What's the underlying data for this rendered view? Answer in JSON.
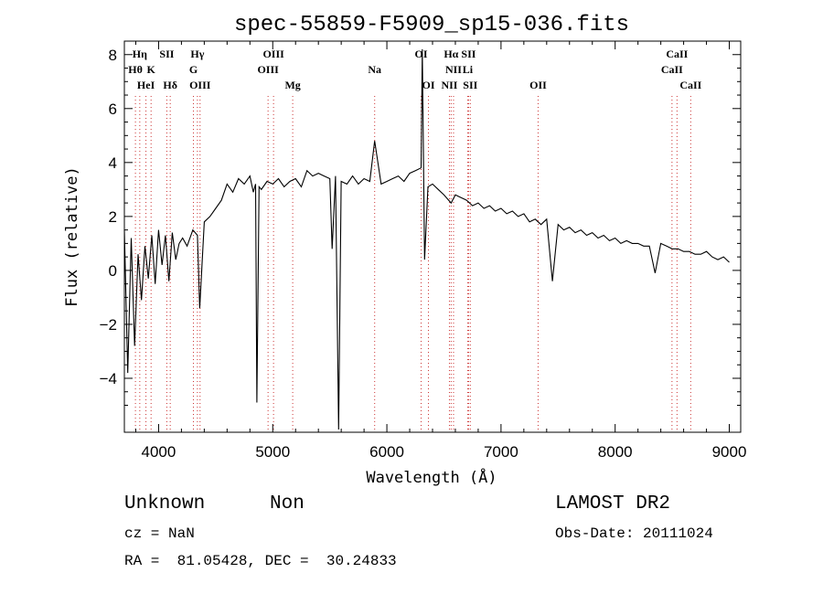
{
  "chart_data": {
    "type": "line",
    "title": "spec-55859-F5909_sp15-036.fits",
    "xlabel": "Wavelength (Å)",
    "ylabel": "Flux (relative)",
    "xlim": [
      3700,
      9100
    ],
    "ylim": [
      -6,
      8.5
    ],
    "xticks": [
      4000,
      5000,
      6000,
      7000,
      8000,
      9000
    ],
    "yticks": [
      -4,
      -2,
      0,
      2,
      4,
      6,
      8
    ],
    "grid": false,
    "series": [
      {
        "color": "#000000",
        "x": [
          3700,
          3730,
          3760,
          3790,
          3820,
          3850,
          3880,
          3910,
          3940,
          3970,
          4000,
          4030,
          4060,
          4090,
          4120,
          4150,
          4180,
          4210,
          4250,
          4300,
          4340,
          4360,
          4400,
          4450,
          4500,
          4550,
          4600,
          4650,
          4700,
          4750,
          4800,
          4830,
          4850,
          4861,
          4880,
          4900,
          4950,
          5000,
          5050,
          5100,
          5150,
          5200,
          5250,
          5300,
          5350,
          5400,
          5450,
          5500,
          5520,
          5550,
          5577,
          5600,
          5650,
          5700,
          5750,
          5800,
          5850,
          5893,
          5950,
          6000,
          6050,
          6100,
          6150,
          6200,
          6250,
          6300,
          6310,
          6330,
          6360,
          6400,
          6450,
          6500,
          6563,
          6600,
          6650,
          6700,
          6750,
          6800,
          6850,
          6900,
          6950,
          7000,
          7050,
          7100,
          7150,
          7200,
          7250,
          7300,
          7350,
          7400,
          7450,
          7500,
          7550,
          7600,
          7650,
          7700,
          7750,
          7800,
          7850,
          7900,
          7950,
          8000,
          8050,
          8100,
          8150,
          8200,
          8250,
          8300,
          8350,
          8400,
          8450,
          8500,
          8550,
          8600,
          8650,
          8700,
          8750,
          8800,
          8850,
          8900,
          8950,
          9000
        ],
        "y": [
          1.5,
          -3.8,
          1.2,
          -2.8,
          0.6,
          -1.1,
          0.9,
          -0.3,
          1.3,
          -0.5,
          1.5,
          0.2,
          1.3,
          -0.4,
          1.4,
          0.4,
          1.0,
          1.2,
          0.9,
          1.5,
          1.3,
          -1.4,
          1.8,
          2.0,
          2.3,
          2.6,
          3.2,
          2.9,
          3.4,
          3.2,
          3.5,
          2.9,
          3.2,
          -4.9,
          3.1,
          3.0,
          3.3,
          3.2,
          3.4,
          3.1,
          3.3,
          3.4,
          3.1,
          3.7,
          3.5,
          3.6,
          3.5,
          3.4,
          0.8,
          3.5,
          -5.9,
          3.3,
          3.2,
          3.5,
          3.2,
          3.4,
          3.3,
          4.8,
          3.2,
          3.3,
          3.4,
          3.5,
          3.3,
          3.6,
          3.7,
          3.8,
          8.2,
          0.4,
          3.1,
          3.2,
          3.0,
          2.8,
          2.5,
          2.8,
          2.7,
          2.6,
          2.4,
          2.5,
          2.3,
          2.4,
          2.2,
          2.3,
          2.1,
          2.2,
          2.0,
          2.1,
          1.8,
          1.9,
          1.7,
          1.9,
          -0.4,
          1.7,
          1.5,
          1.6,
          1.4,
          1.5,
          1.3,
          1.4,
          1.2,
          1.3,
          1.1,
          1.2,
          1.0,
          1.1,
          1.0,
          1.0,
          0.9,
          0.9,
          -0.1,
          1.0,
          0.9,
          0.8,
          0.8,
          0.7,
          0.7,
          0.6,
          0.6,
          0.7,
          0.5,
          0.4,
          0.5,
          0.3
        ]
      }
    ],
    "line_markers": [
      {
        "label": "Hη",
        "wave": 3835,
        "row": 1
      },
      {
        "label": "Hθ",
        "wave": 3797,
        "row": 2
      },
      {
        "label": "K",
        "wave": 3934,
        "row": 2
      },
      {
        "label": "HeI",
        "wave": 3889,
        "row": 3
      },
      {
        "label": "SII",
        "wave": 4072,
        "row": 1
      },
      {
        "label": "Hδ",
        "wave": 4102,
        "row": 3
      },
      {
        "label": "Hγ",
        "wave": 4340,
        "row": 1
      },
      {
        "label": "G",
        "wave": 4305,
        "row": 2
      },
      {
        "label": "OIII",
        "wave": 4363,
        "row": 3
      },
      {
        "label": "OIII",
        "wave": 5007,
        "row": 1
      },
      {
        "label": "OIII",
        "wave": 4959,
        "row": 2
      },
      {
        "label": "Mg",
        "wave": 5175,
        "row": 3
      },
      {
        "label": "Na",
        "wave": 5893,
        "row": 2
      },
      {
        "label": "OI",
        "wave": 6300,
        "row": 1
      },
      {
        "label": "OI",
        "wave": 6364,
        "row": 3
      },
      {
        "label": "Hα",
        "wave": 6563,
        "row": 1
      },
      {
        "label": "SII",
        "wave": 6716,
        "row": 1
      },
      {
        "label": "NII",
        "wave": 6584,
        "row": 2
      },
      {
        "label": "Li",
        "wave": 6708,
        "row": 2
      },
      {
        "label": "NII",
        "wave": 6548,
        "row": 3
      },
      {
        "label": "SII",
        "wave": 6731,
        "row": 3
      },
      {
        "label": "OII",
        "wave": 7325,
        "row": 3
      },
      {
        "label": "CaII",
        "wave": 8542,
        "row": 1
      },
      {
        "label": "CaII",
        "wave": 8498,
        "row": 2
      },
      {
        "label": "CaII",
        "wave": 8662,
        "row": 3
      }
    ]
  },
  "info": {
    "class_label": "Unknown",
    "subclass_label": "Non",
    "survey": "LAMOST DR2",
    "cz": "cz = NaN",
    "obs_date": "Obs-Date: 20111024",
    "coords": "RA =  81.05428, DEC =  30.24833"
  }
}
